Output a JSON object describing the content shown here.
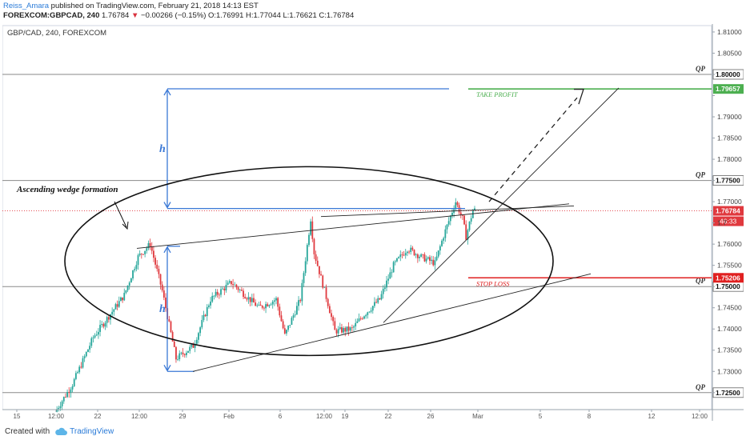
{
  "header": {
    "author": "Reiss_Amara",
    "published": "published on TradingView.com, February 21, 2018 14:13 EST",
    "symbol": "FOREXCOM:GBPCAD, 240",
    "last": "1.76784",
    "change": "−0.00266 (−0.15%)",
    "ohlc": "O:1.76991 H:1.77044 L:1.76621 C:1.76784"
  },
  "chart_data": {
    "type": "candlestick",
    "title": "GBP/CAD, 240, FOREXCOM",
    "x_ticks": [
      "15",
      "12:00",
      "22",
      "12:00",
      "29",
      "Feb",
      "6",
      "12:00",
      "19",
      "22",
      "26",
      "Mar",
      "5",
      "8",
      "12",
      "12:00"
    ],
    "y_ticks": [
      "1.81000",
      "1.80500",
      "1.80000",
      "1.79500",
      "1.79000",
      "1.78500",
      "1.78000",
      "1.77500",
      "1.77000",
      "1.76500",
      "1.76000",
      "1.75500",
      "1.75000",
      "1.74500",
      "1.74000",
      "1.73500",
      "1.73000",
      "1.72500"
    ],
    "ylim": [
      1.721,
      1.8115
    ],
    "qp_levels": [
      1.8,
      1.775,
      1.75,
      1.725
    ],
    "qp_label": "QP",
    "take_profit": {
      "label": "TAKE PROFIT",
      "price": 1.79657,
      "price_label": "1.79657",
      "color": "#4caf50"
    },
    "stop_loss": {
      "label": "STOP LOSS",
      "price": 1.75206,
      "price_label": "1.75206",
      "color": "#e02020"
    },
    "last_price": {
      "price": 1.76784,
      "label": "1.76784",
      "countdown": "46:33",
      "color": "#e0393e"
    },
    "annotation": "Ascending wedge formation",
    "height_label": "h",
    "candle_path": [
      [
        0,
        1.7205
      ],
      [
        10,
        1.727
      ],
      [
        22,
        1.738
      ],
      [
        40,
        1.748
      ],
      [
        48,
        1.757
      ],
      [
        55,
        1.76
      ],
      [
        62,
        1.749
      ],
      [
        70,
        1.733
      ],
      [
        80,
        1.736
      ],
      [
        90,
        1.747
      ],
      [
        102,
        1.751
      ],
      [
        118,
        1.745
      ],
      [
        128,
        1.747
      ],
      [
        133,
        1.7385
      ],
      [
        142,
        1.747
      ],
      [
        148,
        1.766
      ],
      [
        150,
        1.758
      ],
      [
        158,
        1.746
      ],
      [
        162,
        1.7395
      ],
      [
        172,
        1.74
      ],
      [
        178,
        1.743
      ],
      [
        188,
        1.747
      ],
      [
        196,
        1.755
      ],
      [
        204,
        1.759
      ],
      [
        212,
        1.757
      ],
      [
        220,
        1.7555
      ],
      [
        225,
        1.762
      ],
      [
        232,
        1.77
      ],
      [
        236,
        1.766
      ],
      [
        238,
        1.7618
      ],
      [
        242,
        1.768
      ]
    ]
  },
  "footer": {
    "created_with": "Created with",
    "brand": "TradingView"
  }
}
